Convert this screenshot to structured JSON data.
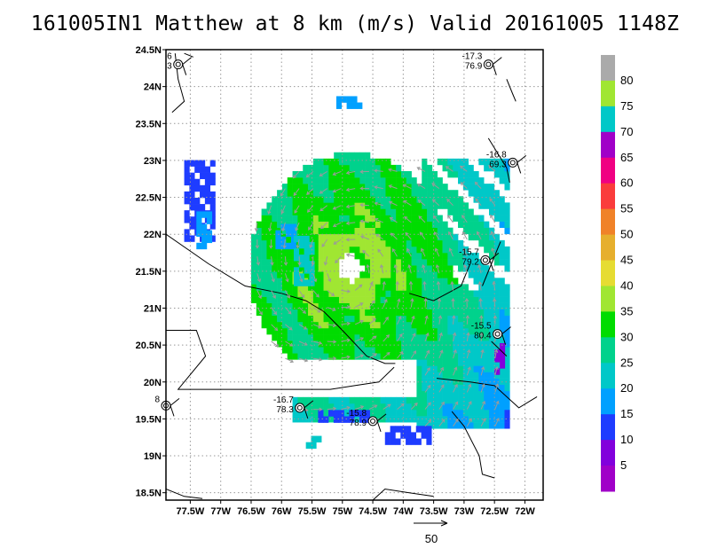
{
  "title": "161005IN1 Matthew at 8 km (m/s) Valid 20161005 1148Z",
  "map": {
    "lon_range": [
      -77.9,
      -71.7
    ],
    "lat_range": [
      18.4,
      24.5
    ],
    "x_ticks": [
      "77.5W",
      "77W",
      "76.5W",
      "76W",
      "75.5W",
      "75W",
      "74.5W",
      "74W",
      "73.5W",
      "73W",
      "72.5W",
      "72W"
    ],
    "x_tick_values": [
      -77.5,
      -77.0,
      -76.5,
      -76.0,
      -75.5,
      -75.0,
      -74.5,
      -74.0,
      -73.5,
      -73.0,
      -72.5,
      -72.0
    ],
    "y_ticks": [
      "18.5N",
      "19N",
      "19.5N",
      "20N",
      "20.5N",
      "21N",
      "21.5N",
      "22N",
      "22.5N",
      "23N",
      "23.5N",
      "24N",
      "24.5N"
    ],
    "y_tick_values": [
      18.5,
      19.0,
      19.5,
      20.0,
      20.5,
      21.0,
      21.5,
      22.0,
      22.5,
      23.0,
      23.5,
      24.0,
      24.5
    ],
    "grid": true,
    "center": [
      -74.9,
      21.5
    ]
  },
  "colorbar": {
    "labels": [
      "5",
      "10",
      "15",
      "20",
      "25",
      "30",
      "35",
      "40",
      "45",
      "50",
      "55",
      "60",
      "65",
      "70",
      "75",
      "80"
    ],
    "colors": [
      "#a000c8",
      "#8200dc",
      "#1e3cff",
      "#00a0ff",
      "#00c8c8",
      "#00d28c",
      "#00dc00",
      "#a0e632",
      "#e6dc32",
      "#e6af2d",
      "#f08228",
      "#fa3c3c",
      "#f00082",
      "#a000c8",
      "#00c8c8",
      "#a0e632",
      "#aaaaaa"
    ]
  },
  "stations": [
    {
      "lines": [
        "6",
        "3"
      ],
      "lon": -77.7,
      "lat": 24.3
    },
    {
      "lines": [
        "-17.3",
        "76.9"
      ],
      "lon": -72.6,
      "lat": 24.3
    },
    {
      "lines": [
        "-16.8",
        "69.3"
      ],
      "lon": -72.2,
      "lat": 22.97
    },
    {
      "lines": [
        "-15.7",
        "79.2"
      ],
      "lon": -72.65,
      "lat": 21.65
    },
    {
      "lines": [
        "-15.5",
        "80.4"
      ],
      "lon": -72.45,
      "lat": 20.65
    },
    {
      "lines": [
        "-16.7",
        "78.3"
      ],
      "lon": -75.7,
      "lat": 19.65
    },
    {
      "lines": [
        "-15.8",
        "78.9"
      ],
      "lon": -74.5,
      "lat": 19.47
    },
    {
      "lines": [
        "8"
      ],
      "lon": -77.9,
      "lat": 19.68
    }
  ],
  "reference_vector": {
    "label": "50"
  }
}
